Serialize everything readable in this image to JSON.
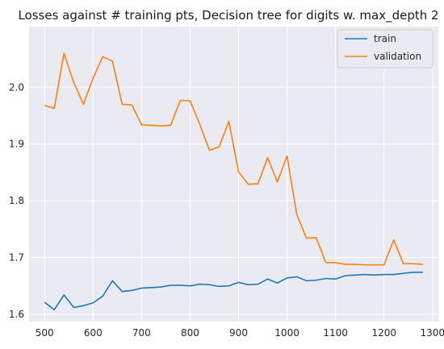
{
  "chart_data": {
    "type": "line",
    "title": "Losses against # training pts, Decision tree for digits w. max_depth 2",
    "xlabel": "",
    "ylabel": "",
    "xlim": [
      468,
      1312
    ],
    "ylim": [
      1.587,
      2.107
    ],
    "xticks": [
      500,
      600,
      700,
      800,
      900,
      1000,
      1100,
      1200,
      1300
    ],
    "yticks": [
      1.6,
      1.7,
      1.8,
      1.9,
      2.0
    ],
    "ytick_labels": [
      "1.6",
      "1.7",
      "1.8",
      "1.9",
      "2.0"
    ],
    "grid": true,
    "legend_position": "top-right",
    "x": [
      500,
      520,
      540,
      560,
      580,
      600,
      620,
      640,
      660,
      680,
      700,
      720,
      740,
      760,
      780,
      800,
      820,
      840,
      860,
      880,
      900,
      920,
      940,
      960,
      980,
      1000,
      1020,
      1040,
      1060,
      1080,
      1100,
      1120,
      1140,
      1160,
      1180,
      1200,
      1220,
      1240,
      1260,
      1280
    ],
    "series": [
      {
        "name": "train",
        "color": "#1f77b4",
        "values": [
          1.621,
          1.608,
          1.634,
          1.612,
          1.615,
          1.62,
          1.632,
          1.659,
          1.64,
          1.642,
          1.646,
          1.647,
          1.648,
          1.651,
          1.651,
          1.65,
          1.653,
          1.652,
          1.649,
          1.65,
          1.656,
          1.652,
          1.653,
          1.662,
          1.655,
          1.664,
          1.666,
          1.659,
          1.66,
          1.663,
          1.662,
          1.668,
          1.669,
          1.67,
          1.669,
          1.67,
          1.67,
          1.672,
          1.674,
          1.674
        ]
      },
      {
        "name": "validation",
        "color": "#ff7f0e",
        "values": [
          1.968,
          1.963,
          2.06,
          2.009,
          1.97,
          2.016,
          2.054,
          2.046,
          1.97,
          1.969,
          1.934,
          1.933,
          1.932,
          1.933,
          1.977,
          1.976,
          1.935,
          1.889,
          1.895,
          1.94,
          1.851,
          1.829,
          1.83,
          1.876,
          1.833,
          1.879,
          1.776,
          1.734,
          1.735,
          1.691,
          1.691,
          1.688,
          1.688,
          1.687,
          1.687,
          1.687,
          1.731,
          1.689,
          1.689,
          1.688
        ]
      }
    ]
  }
}
